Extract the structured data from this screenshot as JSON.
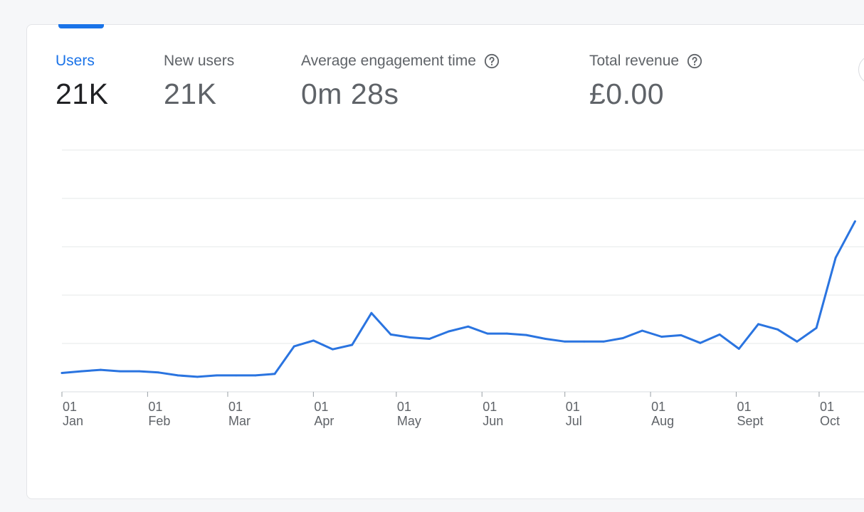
{
  "metrics": [
    {
      "label": "Users",
      "value": "21K",
      "active": true,
      "help": false
    },
    {
      "label": "New users",
      "value": "21K",
      "active": false,
      "help": false
    },
    {
      "label": "Average engagement time",
      "value": "0m 28s",
      "active": false,
      "help": true
    },
    {
      "label": "Total revenue",
      "value": "£0.00",
      "active": false,
      "help": true
    }
  ],
  "colors": {
    "accent": "#1a73e8",
    "line": "#2a74e0",
    "grid": "#e6e8ea",
    "label": "#5f6368"
  },
  "icons": {
    "help": "help-circle-icon"
  },
  "chart_data": {
    "type": "line",
    "x_tick_labels": [
      {
        "day": "01",
        "month": "Jan"
      },
      {
        "day": "01",
        "month": "Feb"
      },
      {
        "day": "01",
        "month": "Mar"
      },
      {
        "day": "01",
        "month": "Apr"
      },
      {
        "day": "01",
        "month": "May"
      },
      {
        "day": "01",
        "month": "Jun"
      },
      {
        "day": "01",
        "month": "Jul"
      },
      {
        "day": "01",
        "month": "Aug"
      },
      {
        "day": "01",
        "month": "Sept"
      },
      {
        "day": "01",
        "month": "Oct"
      }
    ],
    "x_dates": [
      "2024-01-01",
      "2024-01-08",
      "2024-01-15",
      "2024-01-22",
      "2024-01-29",
      "2024-02-05",
      "2024-02-12",
      "2024-02-19",
      "2024-02-26",
      "2024-03-04",
      "2024-03-11",
      "2024-03-18",
      "2024-03-25",
      "2024-04-01",
      "2024-04-08",
      "2024-04-15",
      "2024-04-22",
      "2024-04-29",
      "2024-05-06",
      "2024-05-13",
      "2024-05-20",
      "2024-05-27",
      "2024-06-03",
      "2024-06-10",
      "2024-06-17",
      "2024-06-24",
      "2024-07-01",
      "2024-07-08",
      "2024-07-15",
      "2024-07-22",
      "2024-07-29",
      "2024-08-05",
      "2024-08-12",
      "2024-08-19",
      "2024-08-26",
      "2024-09-02",
      "2024-09-09",
      "2024-09-16",
      "2024-09-23",
      "2024-09-30",
      "2024-10-07",
      "2024-10-14"
    ],
    "values": [
      0.78,
      0.85,
      0.91,
      0.85,
      0.85,
      0.8,
      0.68,
      0.62,
      0.68,
      0.68,
      0.68,
      0.74,
      1.88,
      2.12,
      1.76,
      1.94,
      3.26,
      2.37,
      2.25,
      2.19,
      2.5,
      2.7,
      2.41,
      2.41,
      2.35,
      2.19,
      2.08,
      2.08,
      2.08,
      2.22,
      2.53,
      2.28,
      2.34,
      2.02,
      2.37,
      1.78,
      2.8,
      2.58,
      2.08,
      2.64,
      5.55,
      7.05
    ],
    "grid": true,
    "ylim": [
      0,
      10
    ]
  }
}
